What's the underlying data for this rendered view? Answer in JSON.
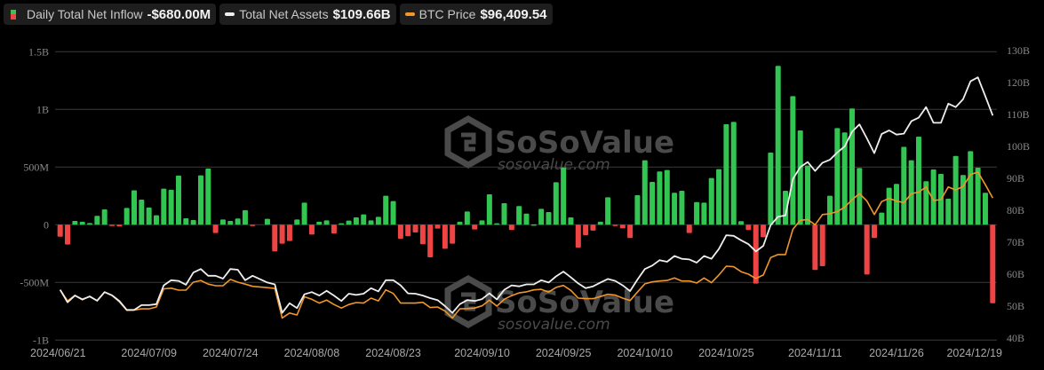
{
  "legend": {
    "inflow": {
      "label": "Daily Total Net Inflow",
      "value": "-$680.00M"
    },
    "assets": {
      "label": "Total Net Assets",
      "value": "$109.66B"
    },
    "btc": {
      "label": "BTC Price",
      "value": "$96,409.54"
    }
  },
  "watermark": {
    "brand": "SoSoValue",
    "url": "sosovalue.com"
  },
  "colors": {
    "positive": "#33c552",
    "negative": "#ef4444",
    "assets_line": "#eeeeee",
    "btc_line": "#f0962a",
    "grid": "#3a3a3a",
    "background": "#000000"
  },
  "chart_data": {
    "type": "bar",
    "title": "",
    "x_start": "2024/06/21",
    "x_end": "2024/12/19",
    "x_tick_labels": [
      "2024/06/21",
      "2024/07/09",
      "2024/07/24",
      "2024/08/08",
      "2024/08/23",
      "2024/09/10",
      "2024/09/25",
      "2024/10/10",
      "2024/10/25",
      "2024/11/11",
      "2024/11/26",
      "2024/12/19"
    ],
    "x_tick_slots": [
      0,
      12,
      23,
      34,
      45,
      57,
      68,
      79,
      90,
      102,
      113,
      126
    ],
    "left_axis": {
      "label": "Daily Total Net Inflow",
      "ticks": [
        "1.5B",
        "1B",
        "500M",
        "0",
        "-500M",
        "-1B"
      ],
      "tick_values": [
        1500,
        1000,
        500,
        0,
        -500,
        -1000
      ],
      "ylim": [
        -1000,
        1500
      ],
      "unit": "M USD"
    },
    "right_axis": {
      "label": "Total Net Assets",
      "ticks": [
        "130B",
        "120B",
        "110B",
        "100B",
        "90B",
        "80B",
        "70B",
        "60B",
        "50B",
        "40B"
      ],
      "tick_values": [
        130,
        120,
        110,
        100,
        90,
        80,
        70,
        60,
        50,
        40
      ],
      "ylim": [
        40,
        130
      ],
      "unit": "B USD"
    },
    "grid": true,
    "legend_position": "top-left",
    "series": [
      {
        "name": "Daily Total Net Inflow",
        "type": "bar",
        "unit": "M USD",
        "values": [
          -103,
          -172,
          33,
          26,
          15,
          77,
          133,
          -5,
          -15,
          146,
          298,
          218,
          149,
          82,
          313,
          303,
          426,
          56,
          41,
          428,
          487,
          -72,
          46,
          33,
          54,
          126,
          -10,
          null,
          51,
          -231,
          -164,
          -141,
          46,
          192,
          -85,
          26,
          38,
          -77,
          13,
          36,
          64,
          90,
          38,
          69,
          251,
          205,
          -121,
          -100,
          -67,
          -169,
          -282,
          -33,
          -208,
          -164,
          26,
          115,
          -41,
          38,
          264,
          13,
          187,
          -46,
          162,
          97,
          3,
          138,
          110,
          369,
          497,
          64,
          -198,
          -90,
          -51,
          26,
          238,
          -10,
          -31,
          -115,
          256,
          559,
          372,
          462,
          474,
          277,
          295,
          -72,
          197,
          192,
          405,
          482,
          872,
          892,
          31,
          -46,
          -510,
          -108,
          625,
          1377,
          295,
          1115,
          818,
          513,
          -392,
          -359,
          251,
          838,
          800,
          1008,
          492,
          -431,
          -115,
          105,
          321,
          354,
          675,
          559,
          764,
          377,
          479,
          441,
          226,
          597,
          431,
          638,
          495,
          277,
          -680
        ]
      },
      {
        "name": "Total Net Assets",
        "type": "line",
        "unit": "B USD",
        "axis": "right",
        "values": [
          55.1,
          51.2,
          53.3,
          52.1,
          53.0,
          51.7,
          54.4,
          53.4,
          51.6,
          48.8,
          48.8,
          50.3,
          50.3,
          50.6,
          56.5,
          58.1,
          57.9,
          56.7,
          60.5,
          61.6,
          59.5,
          59.5,
          58.6,
          61.6,
          61.4,
          58.1,
          59.5,
          null,
          57.4,
          56.8,
          47.9,
          50.9,
          49.4,
          53.7,
          54.4,
          53.3,
          54.8,
          53.3,
          51.6,
          53.9,
          53.5,
          53.9,
          55.6,
          54.6,
          58.1,
          58.1,
          56.5,
          54.0,
          53.9,
          53.3,
          52.5,
          51.9,
          50.0,
          47.9,
          50.6,
          51.9,
          51.6,
          52.2,
          54.0,
          52.1,
          55.1,
          56.5,
          56.2,
          56.8,
          56.8,
          58.1,
          57.4,
          59.3,
          60.8,
          59.0,
          57.1,
          55.6,
          56.2,
          57.4,
          58.5,
          57.9,
          56.5,
          54.7,
          58.3,
          61.6,
          62.7,
          64.4,
          63.9,
          65.7,
          64.8,
          64.6,
          63.6,
          65.7,
          64.8,
          67.9,
          72.2,
          72.0,
          70.6,
          69.4,
          67.1,
          68.9,
          75.4,
          78.0,
          78.4,
          89.8,
          93.5,
          95.1,
          92.3,
          94.9,
          95.8,
          98.1,
          100.0,
          104.6,
          106.9,
          102.5,
          97.9,
          103.9,
          105.0,
          103.7,
          104.0,
          107.9,
          109.0,
          112.3,
          107.4,
          107.4,
          113.4,
          112.3,
          114.8,
          120.4,
          121.6,
          115.7,
          109.66
        ]
      },
      {
        "name": "BTC Price",
        "type": "line",
        "unit": "USD",
        "values": [
          63100,
          59100,
          61100,
          59500,
          60800,
          59100,
          62300,
          61100,
          58800,
          55700,
          55800,
          56200,
          56200,
          56900,
          63500,
          63700,
          63000,
          63000,
          65900,
          66500,
          65200,
          64600,
          64600,
          66900,
          65900,
          65200,
          64400,
          null,
          63900,
          63600,
          52900,
          54700,
          54000,
          60600,
          59700,
          58300,
          59400,
          57800,
          56500,
          57800,
          58500,
          58300,
          60100,
          59100,
          63100,
          61800,
          58300,
          58300,
          58300,
          58600,
          56700,
          56900,
          55400,
          52900,
          56200,
          56300,
          56500,
          57300,
          59400,
          57200,
          59700,
          61000,
          62000,
          62400,
          63100,
          63300,
          62300,
          64000,
          64700,
          62900,
          60100,
          59900,
          59900,
          60700,
          61500,
          61200,
          60100,
          59200,
          62300,
          65300,
          66000,
          66300,
          66500,
          67400,
          66300,
          66300,
          65600,
          67400,
          65700,
          68500,
          71700,
          71500,
          69700,
          68800,
          67200,
          68500,
          74800,
          75900,
          75900,
          85100,
          88300,
          88600,
          86700,
          90400,
          90700,
          91500,
          93100,
          95800,
          98000,
          95300,
          90400,
          95100,
          96300,
          95300,
          94700,
          98000,
          98500,
          100400,
          95500,
          95800,
          100400,
          99300,
          100600,
          104900,
          105800,
          101200,
          96409.54
        ]
      }
    ]
  }
}
